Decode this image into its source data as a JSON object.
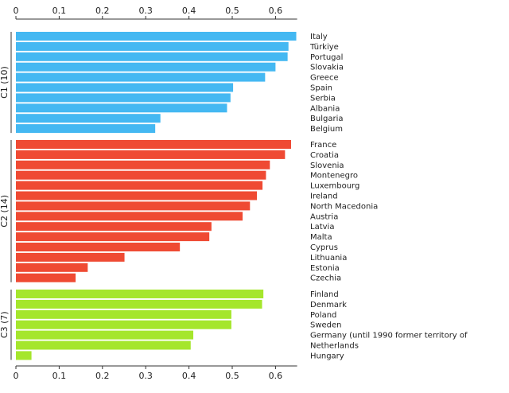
{
  "chart_data": {
    "type": "bar",
    "orientation": "horizontal",
    "title": "",
    "xlabel": "",
    "ylabel": "",
    "xlim": [
      0,
      0.65
    ],
    "xticks": [
      "0",
      "0.1",
      "0.2",
      "0.3",
      "0.4",
      "0.5",
      "0.6"
    ],
    "legend": "none",
    "grid": false,
    "groups": [
      {
        "name": "C1 (10)",
        "color": "#44b8f2",
        "categories": [
          "Italy",
          "Türkiye",
          "Portugal",
          "Slovakia",
          "Greece",
          "Spain",
          "Serbia",
          "Albania",
          "Bulgaria",
          "Belgium"
        ],
        "values": [
          0.648,
          0.63,
          0.628,
          0.6,
          0.576,
          0.502,
          0.496,
          0.488,
          0.334,
          0.322
        ]
      },
      {
        "name": "C2 (14)",
        "color": "#ef4a33",
        "categories": [
          "France",
          "Croatia",
          "Slovenia",
          "Montenegro",
          "Luxembourg",
          "Ireland",
          "North Macedonia",
          "Austria",
          "Latvia",
          "Malta",
          "Cyprus",
          "Lithuania",
          "Estonia",
          "Czechia"
        ],
        "values": [
          0.636,
          0.622,
          0.587,
          0.578,
          0.57,
          0.557,
          0.541,
          0.524,
          0.452,
          0.447,
          0.379,
          0.251,
          0.166,
          0.138
        ]
      },
      {
        "name": "C3 (7)",
        "color": "#a5e62c",
        "categories": [
          "Finland",
          "Denmark",
          "Poland",
          "Sweden",
          "Germany (until 1990 former territory of",
          "Netherlands",
          "Hungary"
        ],
        "values": [
          0.572,
          0.569,
          0.498,
          0.498,
          0.41,
          0.404,
          0.036
        ]
      }
    ]
  }
}
